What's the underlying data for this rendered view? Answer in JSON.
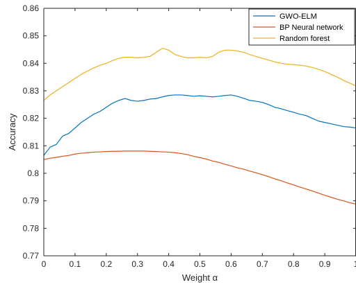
{
  "chart_data": {
    "type": "line",
    "title": "",
    "xlabel": "Weight α",
    "ylabel": "Accuracy",
    "xlim": [
      0,
      1
    ],
    "ylim": [
      0.77,
      0.86
    ],
    "xticks": [
      0,
      0.1,
      0.2,
      0.3,
      0.4,
      0.5,
      0.6,
      0.7,
      0.8,
      0.9,
      1
    ],
    "xtick_labels": [
      "0",
      "0.1",
      "0.2",
      "0.3",
      "0.4",
      "0.5",
      "0.6",
      "0.7",
      "0.8",
      "0.9",
      "1"
    ],
    "yticks": [
      0.77,
      0.78,
      0.79,
      0.8,
      0.81,
      0.82,
      0.83,
      0.84,
      0.85,
      0.86
    ],
    "ytick_labels": [
      "0.77",
      "0.78",
      "0.79",
      "0.8",
      "0.81",
      "0.82",
      "0.83",
      "0.84",
      "0.85",
      "0.86"
    ],
    "grid": false,
    "legend_position": "top-right",
    "x": [
      0,
      0.02,
      0.04,
      0.06,
      0.08,
      0.1,
      0.12,
      0.14,
      0.16,
      0.18,
      0.2,
      0.22,
      0.24,
      0.26,
      0.28,
      0.3,
      0.32,
      0.34,
      0.36,
      0.38,
      0.4,
      0.42,
      0.44,
      0.46,
      0.48,
      0.5,
      0.52,
      0.54,
      0.56,
      0.58,
      0.6,
      0.62,
      0.64,
      0.66,
      0.68,
      0.7,
      0.72,
      0.74,
      0.76,
      0.78,
      0.8,
      0.82,
      0.84,
      0.86,
      0.88,
      0.9,
      0.92,
      0.94,
      0.96,
      0.98,
      1.0
    ],
    "series": [
      {
        "name": "GWO-ELM",
        "color": "#0072BD",
        "values": [
          0.8065,
          0.8095,
          0.8105,
          0.8135,
          0.8145,
          0.8165,
          0.8185,
          0.82,
          0.8215,
          0.8225,
          0.824,
          0.8255,
          0.8265,
          0.8272,
          0.8265,
          0.8262,
          0.8265,
          0.827,
          0.8272,
          0.8278,
          0.8283,
          0.8285,
          0.8285,
          0.8283,
          0.828,
          0.8282,
          0.828,
          0.8278,
          0.828,
          0.8283,
          0.8285,
          0.828,
          0.8273,
          0.8265,
          0.8262,
          0.8258,
          0.825,
          0.824,
          0.8235,
          0.8228,
          0.8222,
          0.8215,
          0.821,
          0.82,
          0.819,
          0.8185,
          0.818,
          0.8175,
          0.817,
          0.8168,
          0.8165
        ]
      },
      {
        "name": "BP Neural network",
        "color": "#D95319",
        "values": [
          0.805,
          0.8055,
          0.8058,
          0.8062,
          0.8065,
          0.807,
          0.8073,
          0.8075,
          0.8077,
          0.8078,
          0.8079,
          0.808,
          0.808,
          0.8081,
          0.8081,
          0.8081,
          0.8081,
          0.808,
          0.8079,
          0.8078,
          0.8077,
          0.8075,
          0.8072,
          0.8068,
          0.8062,
          0.8057,
          0.8052,
          0.8045,
          0.804,
          0.8033,
          0.8027,
          0.802,
          0.8015,
          0.8008,
          0.8002,
          0.7995,
          0.7988,
          0.798,
          0.7973,
          0.7965,
          0.7958,
          0.795,
          0.7943,
          0.7936,
          0.7928,
          0.792,
          0.7913,
          0.7906,
          0.79,
          0.7893,
          0.7888
        ]
      },
      {
        "name": "Random forest",
        "color": "#EDB120",
        "values": [
          0.8265,
          0.8285,
          0.83,
          0.8315,
          0.833,
          0.8345,
          0.836,
          0.8372,
          0.8383,
          0.8393,
          0.84,
          0.841,
          0.8418,
          0.8422,
          0.8422,
          0.842,
          0.8422,
          0.8425,
          0.844,
          0.8455,
          0.8448,
          0.8432,
          0.8425,
          0.842,
          0.842,
          0.8422,
          0.842,
          0.8425,
          0.844,
          0.8448,
          0.8448,
          0.8445,
          0.844,
          0.8432,
          0.8425,
          0.8418,
          0.8412,
          0.8405,
          0.84,
          0.8397,
          0.8395,
          0.8393,
          0.839,
          0.8385,
          0.8378,
          0.837,
          0.836,
          0.835,
          0.8338,
          0.8328,
          0.8318
        ]
      }
    ]
  }
}
